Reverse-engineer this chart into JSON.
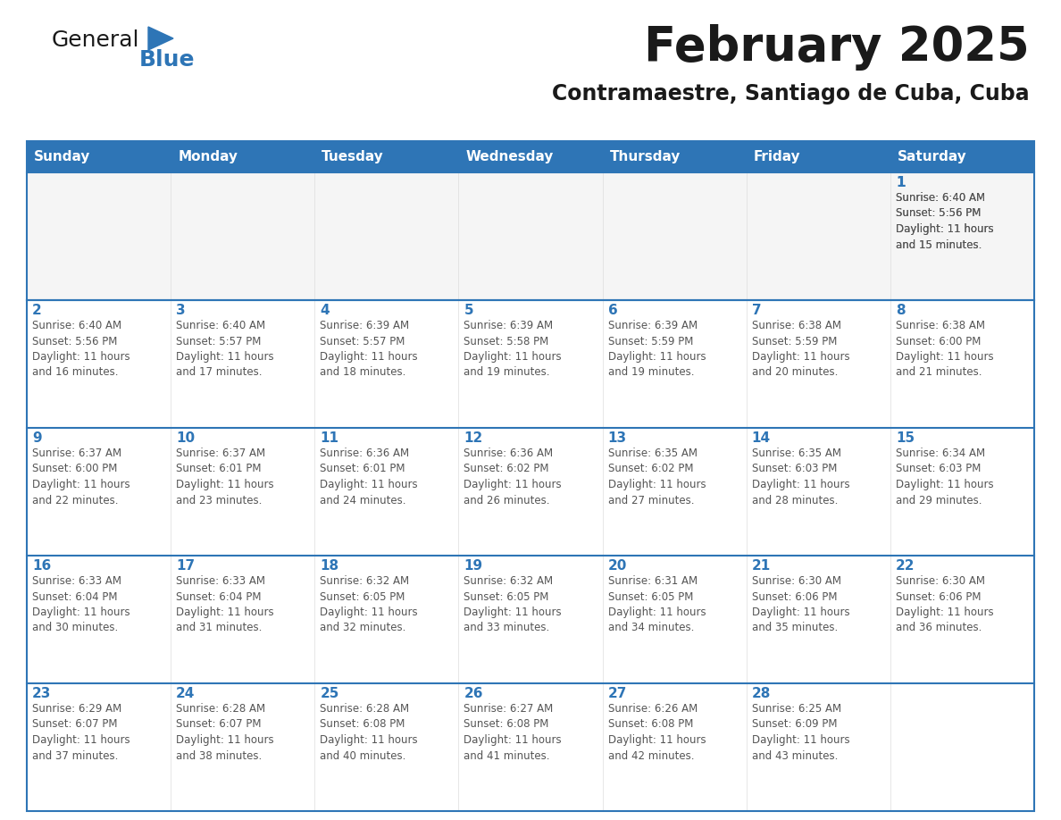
{
  "title": "February 2025",
  "subtitle": "Contramaestre, Santiago de Cuba, Cuba",
  "header_bg": "#2E75B6",
  "header_text": "#FFFFFF",
  "cell_bg": "#FFFFFF",
  "row_separator_color": "#2E75B6",
  "col_separator_color": "#CCCCCC",
  "text_color": "#555555",
  "day_number_color": "#2E75B6",
  "days_of_week": [
    "Sunday",
    "Monday",
    "Tuesday",
    "Wednesday",
    "Thursday",
    "Friday",
    "Saturday"
  ],
  "logo_general_color": "#1a1a1a",
  "logo_blue_color": "#2E75B6",
  "weeks": [
    [
      {
        "day": null,
        "info": null
      },
      {
        "day": null,
        "info": null
      },
      {
        "day": null,
        "info": null
      },
      {
        "day": null,
        "info": null
      },
      {
        "day": null,
        "info": null
      },
      {
        "day": null,
        "info": null
      },
      {
        "day": 1,
        "info": "Sunrise: 6:40 AM\nSunset: 5:56 PM\nDaylight: 11 hours\nand 15 minutes."
      }
    ],
    [
      {
        "day": 2,
        "info": "Sunrise: 6:40 AM\nSunset: 5:56 PM\nDaylight: 11 hours\nand 16 minutes."
      },
      {
        "day": 3,
        "info": "Sunrise: 6:40 AM\nSunset: 5:57 PM\nDaylight: 11 hours\nand 17 minutes."
      },
      {
        "day": 4,
        "info": "Sunrise: 6:39 AM\nSunset: 5:57 PM\nDaylight: 11 hours\nand 18 minutes."
      },
      {
        "day": 5,
        "info": "Sunrise: 6:39 AM\nSunset: 5:58 PM\nDaylight: 11 hours\nand 19 minutes."
      },
      {
        "day": 6,
        "info": "Sunrise: 6:39 AM\nSunset: 5:59 PM\nDaylight: 11 hours\nand 19 minutes."
      },
      {
        "day": 7,
        "info": "Sunrise: 6:38 AM\nSunset: 5:59 PM\nDaylight: 11 hours\nand 20 minutes."
      },
      {
        "day": 8,
        "info": "Sunrise: 6:38 AM\nSunset: 6:00 PM\nDaylight: 11 hours\nand 21 minutes."
      }
    ],
    [
      {
        "day": 9,
        "info": "Sunrise: 6:37 AM\nSunset: 6:00 PM\nDaylight: 11 hours\nand 22 minutes."
      },
      {
        "day": 10,
        "info": "Sunrise: 6:37 AM\nSunset: 6:01 PM\nDaylight: 11 hours\nand 23 minutes."
      },
      {
        "day": 11,
        "info": "Sunrise: 6:36 AM\nSunset: 6:01 PM\nDaylight: 11 hours\nand 24 minutes."
      },
      {
        "day": 12,
        "info": "Sunrise: 6:36 AM\nSunset: 6:02 PM\nDaylight: 11 hours\nand 26 minutes."
      },
      {
        "day": 13,
        "info": "Sunrise: 6:35 AM\nSunset: 6:02 PM\nDaylight: 11 hours\nand 27 minutes."
      },
      {
        "day": 14,
        "info": "Sunrise: 6:35 AM\nSunset: 6:03 PM\nDaylight: 11 hours\nand 28 minutes."
      },
      {
        "day": 15,
        "info": "Sunrise: 6:34 AM\nSunset: 6:03 PM\nDaylight: 11 hours\nand 29 minutes."
      }
    ],
    [
      {
        "day": 16,
        "info": "Sunrise: 6:33 AM\nSunset: 6:04 PM\nDaylight: 11 hours\nand 30 minutes."
      },
      {
        "day": 17,
        "info": "Sunrise: 6:33 AM\nSunset: 6:04 PM\nDaylight: 11 hours\nand 31 minutes."
      },
      {
        "day": 18,
        "info": "Sunrise: 6:32 AM\nSunset: 6:05 PM\nDaylight: 11 hours\nand 32 minutes."
      },
      {
        "day": 19,
        "info": "Sunrise: 6:32 AM\nSunset: 6:05 PM\nDaylight: 11 hours\nand 33 minutes."
      },
      {
        "day": 20,
        "info": "Sunrise: 6:31 AM\nSunset: 6:05 PM\nDaylight: 11 hours\nand 34 minutes."
      },
      {
        "day": 21,
        "info": "Sunrise: 6:30 AM\nSunset: 6:06 PM\nDaylight: 11 hours\nand 35 minutes."
      },
      {
        "day": 22,
        "info": "Sunrise: 6:30 AM\nSunset: 6:06 PM\nDaylight: 11 hours\nand 36 minutes."
      }
    ],
    [
      {
        "day": 23,
        "info": "Sunrise: 6:29 AM\nSunset: 6:07 PM\nDaylight: 11 hours\nand 37 minutes."
      },
      {
        "day": 24,
        "info": "Sunrise: 6:28 AM\nSunset: 6:07 PM\nDaylight: 11 hours\nand 38 minutes."
      },
      {
        "day": 25,
        "info": "Sunrise: 6:28 AM\nSunset: 6:08 PM\nDaylight: 11 hours\nand 40 minutes."
      },
      {
        "day": 26,
        "info": "Sunrise: 6:27 AM\nSunset: 6:08 PM\nDaylight: 11 hours\nand 41 minutes."
      },
      {
        "day": 27,
        "info": "Sunrise: 6:26 AM\nSunset: 6:08 PM\nDaylight: 11 hours\nand 42 minutes."
      },
      {
        "day": 28,
        "info": "Sunrise: 6:25 AM\nSunset: 6:09 PM\nDaylight: 11 hours\nand 43 minutes."
      },
      {
        "day": null,
        "info": null
      }
    ]
  ]
}
